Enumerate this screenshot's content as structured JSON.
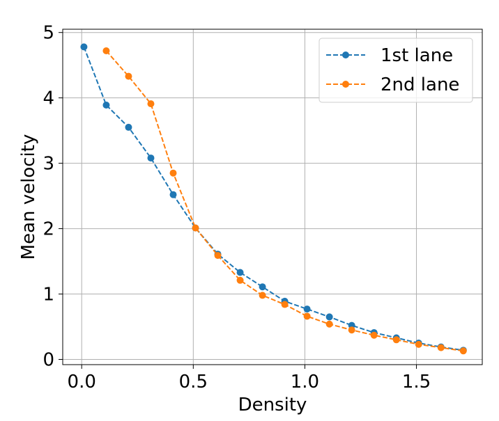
{
  "chart_data": {
    "type": "line",
    "title": "",
    "xlabel": "Density",
    "ylabel": "Mean velocity",
    "xlim": [
      -0.085,
      1.795
    ],
    "ylim": [
      -0.08,
      5.05
    ],
    "x_ticks": [
      0.0,
      0.5,
      1.0,
      1.5
    ],
    "x_tick_labels": [
      "0.0",
      "0.5",
      "1.0",
      "1.5"
    ],
    "y_ticks": [
      0,
      1,
      2,
      3,
      4,
      5
    ],
    "y_tick_labels": [
      "0",
      "1",
      "2",
      "3",
      "4",
      "5"
    ],
    "grid": true,
    "legend_position": "top-right",
    "series": [
      {
        "name": "1st lane",
        "color": "#1f77b4",
        "line_style": "dashed",
        "marker": "circle",
        "x": [
          0.01,
          0.11,
          0.21,
          0.31,
          0.41,
          0.51,
          0.61,
          0.71,
          0.81,
          0.91,
          1.01,
          1.11,
          1.21,
          1.31,
          1.41,
          1.51,
          1.61,
          1.71
        ],
        "y": [
          4.78,
          3.89,
          3.55,
          3.08,
          2.52,
          2.01,
          1.61,
          1.33,
          1.11,
          0.89,
          0.77,
          0.65,
          0.52,
          0.41,
          0.33,
          0.25,
          0.19,
          0.14
        ]
      },
      {
        "name": "2nd lane",
        "color": "#ff7f0e",
        "line_style": "dashed",
        "marker": "circle",
        "x": [
          0.11,
          0.21,
          0.31,
          0.41,
          0.51,
          0.61,
          0.71,
          0.81,
          0.91,
          1.01,
          1.11,
          1.21,
          1.31,
          1.41,
          1.51,
          1.61,
          1.71
        ],
        "y": [
          4.72,
          4.33,
          3.91,
          2.85,
          2.01,
          1.59,
          1.21,
          0.98,
          0.84,
          0.66,
          0.54,
          0.45,
          0.37,
          0.3,
          0.23,
          0.18,
          0.13
        ]
      }
    ]
  }
}
